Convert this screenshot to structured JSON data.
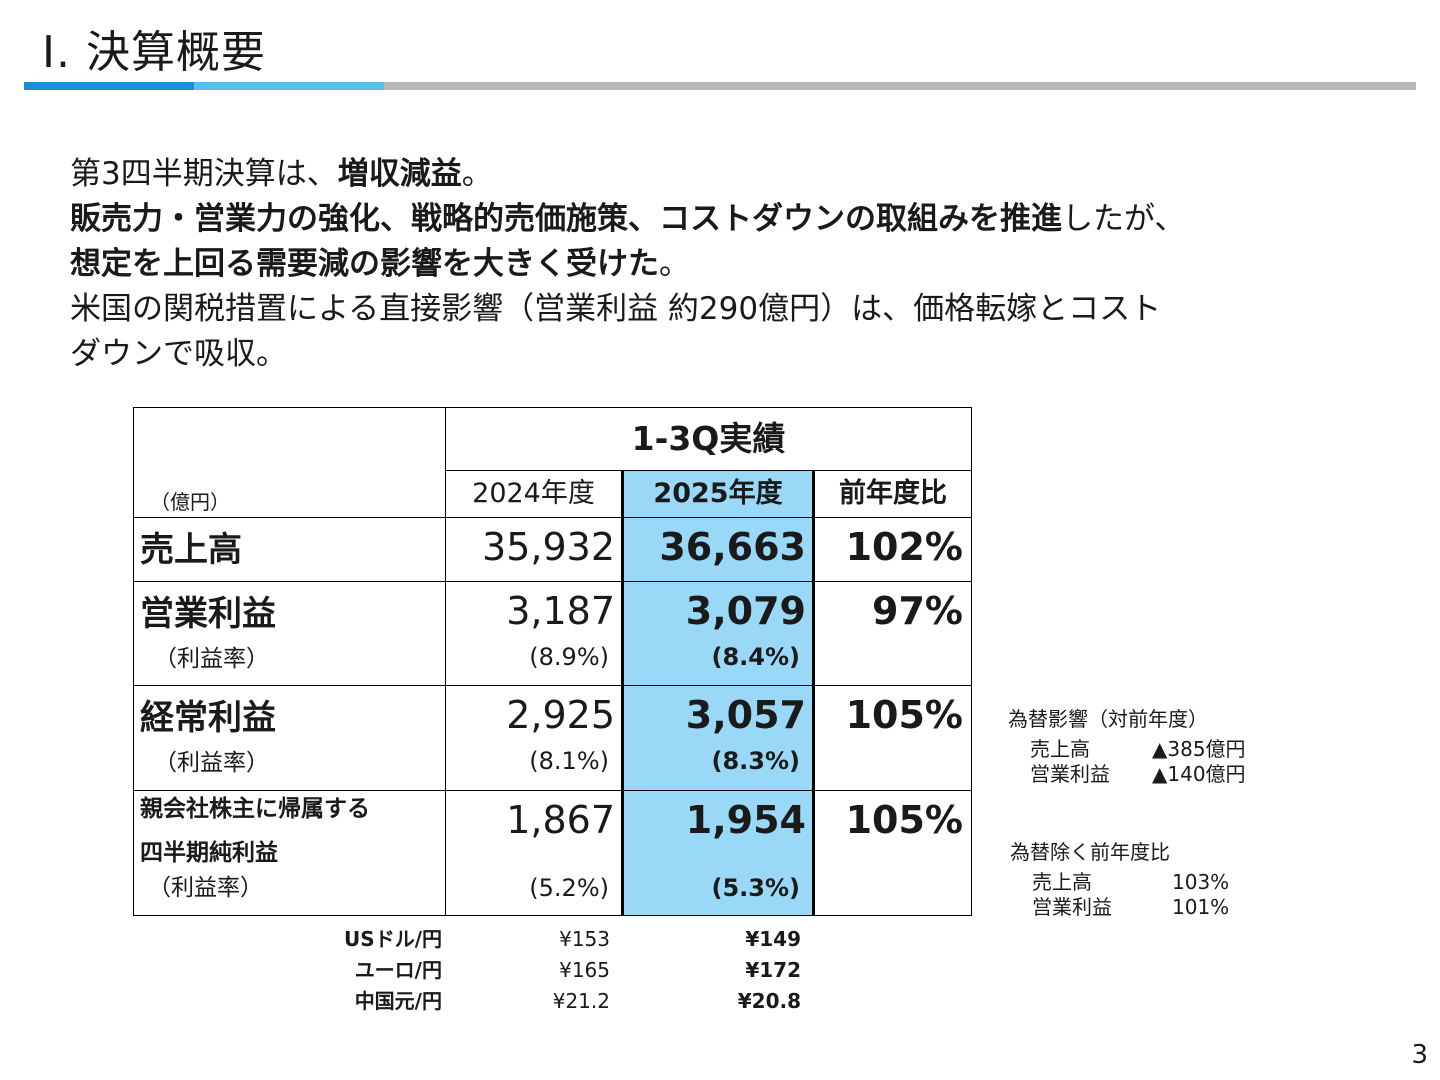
{
  "title": "Ⅰ. 決算概要",
  "colors": {
    "bar_dark": "#1b8ed6",
    "bar_light": "#5bbcec",
    "bar_gray": "#b8b8b8",
    "highlight": "#99d9f7"
  },
  "summary": {
    "l1_a": "第3四半期決算は、",
    "l1_b": "増収減益",
    "l1_c": "。",
    "l2_a": "販売力・営業力の強化、戦略的売価施策、コストダウンの取組みを推進",
    "l2_b": "したが、",
    "l3_a": "想定を上回る需要減の影響を大きく受けた",
    "l3_b": "。",
    "l4": "米国の関税措置による直接影響（営業利益 約290億円）は、価格転嫁とコスト",
    "l5": "ダウンで吸収。"
  },
  "table": {
    "header_title": "1-3Q実績",
    "unit": "（億円）",
    "col_prev": "2024年度",
    "col_curr": "2025年度",
    "col_ratio": "前年度比",
    "rows": [
      {
        "label": "売上高",
        "prev": "35,932",
        "curr": "36,663",
        "ratio": "102%"
      },
      {
        "label": "営業利益",
        "sub": "（利益率）",
        "prev": "3,187",
        "prev_rate": "(8.9%)",
        "curr": "3,079",
        "curr_rate": "(8.4%)",
        "ratio": "97%"
      },
      {
        "label": "経常利益",
        "sub": "（利益率）",
        "prev": "2,925",
        "prev_rate": "(8.1%)",
        "curr": "3,057",
        "curr_rate": "(8.3%)",
        "ratio": "105%"
      },
      {
        "label1": "親会社株主に帰属する",
        "label2": "四半期純利益",
        "sub": "（利益率）",
        "prev": "1,867",
        "prev_rate": "(5.2%)",
        "curr": "1,954",
        "curr_rate": "(5.3%)",
        "ratio": "105%"
      }
    ]
  },
  "fx": [
    {
      "label": "USドル/円",
      "prev": "¥153",
      "curr": "¥149"
    },
    {
      "label": "ユーロ/円",
      "prev": "¥165",
      "curr": "¥172"
    },
    {
      "label": "中国元/円",
      "prev": "¥21.2",
      "curr": "¥20.8"
    }
  ],
  "note_fx_impact": {
    "head": "為替影響（対前年度）",
    "rows": [
      {
        "label": "売上高",
        "value": "▲385億円"
      },
      {
        "label": "営業利益",
        "value": "▲140億円"
      }
    ]
  },
  "note_ex_fx": {
    "head": "為替除く前年度比",
    "rows": [
      {
        "label": "売上高",
        "value": "103%"
      },
      {
        "label": "営業利益",
        "value": "101%"
      }
    ]
  },
  "page_number": "3"
}
